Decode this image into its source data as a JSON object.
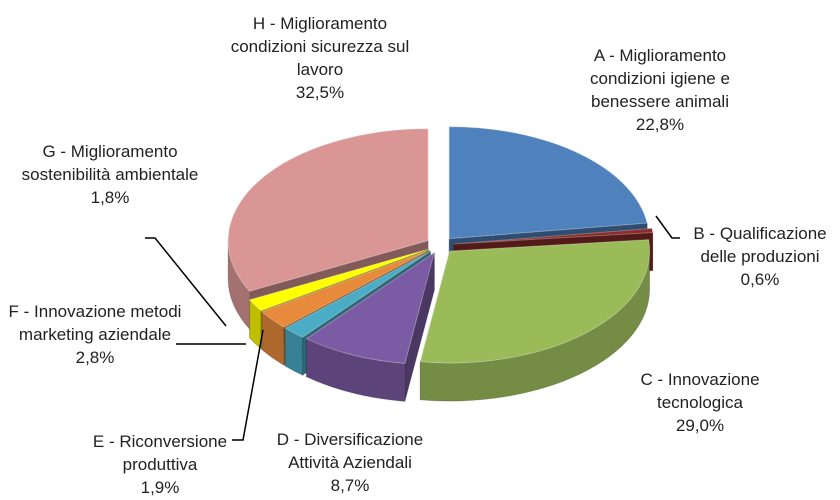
{
  "chart_data": {
    "type": "pie",
    "pie_3d": true,
    "exploded": true,
    "categories": [
      "A - Miglioramento condizioni igiene e benessere animali",
      "B - Qualificazione delle produzioni",
      "C - Innovazione tecnologica",
      "D - Diversificazione Attività Aziendali",
      "E - Riconversione produttiva",
      "F - Innovazione metodi marketing aziendale",
      "G - Miglioramento sostenibilità ambientale",
      "H - Miglioramento condizioni sicurezza sul lavoro"
    ],
    "values": [
      22.8,
      0.6,
      29.0,
      8.7,
      1.9,
      2.8,
      1.8,
      32.5
    ],
    "value_labels": [
      "22,8%",
      "0,6%",
      "29,0%",
      "8,7%",
      "1,9%",
      "2,8%",
      "1,8%",
      "32,5%"
    ],
    "colors": [
      "#4f81bd",
      "#8b2b2b",
      "#9bbb59",
      "#7b5ba3",
      "#4bacc6",
      "#e88a3c",
      "#ffff00",
      "#d99694"
    ]
  }
}
